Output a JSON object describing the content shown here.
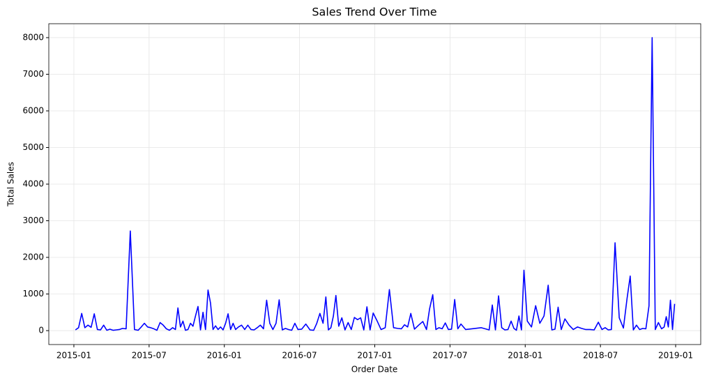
{
  "chart_data": {
    "type": "line",
    "title": "Sales Trend Over Time",
    "xlabel": "Order Date",
    "ylabel": "Total Sales",
    "color": "#0000ff",
    "grid": true,
    "x": [
      "2015-01",
      "2015-01",
      "2015-01",
      "2015-01",
      "2015-02",
      "2015-02",
      "2015-02",
      "2015-02",
      "2015-03",
      "2015-03",
      "2015-03",
      "2015-03",
      "2015-04",
      "2015-04",
      "2015-04",
      "2015-04",
      "2015-05",
      "2015-05",
      "2015-05",
      "2015-06",
      "2015-06",
      "2015-06",
      "2015-06",
      "2015-07",
      "2015-07",
      "2015-07",
      "2015-07",
      "2015-08",
      "2015-08",
      "2015-08",
      "2015-08",
      "2015-09",
      "2015-09",
      "2015-09",
      "2015-09",
      "2015-09",
      "2015-10",
      "2015-10",
      "2015-10",
      "2015-10",
      "2015-10",
      "2015-11",
      "2015-11",
      "2015-11",
      "2015-11",
      "2015-11",
      "2015-12",
      "2015-12",
      "2015-12",
      "2015-12",
      "2015-12",
      "2016-01",
      "2016-01",
      "2016-01",
      "2016-01",
      "2016-01",
      "2016-02",
      "2016-02",
      "2016-02",
      "2016-02",
      "2016-03",
      "2016-03",
      "2016-03",
      "2016-03",
      "2016-04",
      "2016-04",
      "2016-04",
      "2016-04",
      "2016-05",
      "2016-05",
      "2016-05",
      "2016-05",
      "2016-06",
      "2016-06",
      "2016-06",
      "2016-06",
      "2016-07",
      "2016-07",
      "2016-07",
      "2016-08",
      "2016-08",
      "2016-08",
      "2016-08",
      "2016-09",
      "2016-09",
      "2016-09",
      "2016-09",
      "2016-09",
      "2016-10",
      "2016-10",
      "2016-10",
      "2016-10",
      "2016-11",
      "2016-11",
      "2016-11",
      "2016-11",
      "2016-12",
      "2016-12",
      "2016-12",
      "2016-12",
      "2017-01",
      "2017-01",
      "2017-01",
      "2017-02",
      "2017-02",
      "2017-02",
      "2017-03",
      "2017-03",
      "2017-03",
      "2017-03",
      "2017-04",
      "2017-04",
      "2017-04",
      "2017-05",
      "2017-05",
      "2017-05",
      "2017-05",
      "2017-06",
      "2017-06",
      "2017-06",
      "2017-06",
      "2017-07",
      "2017-07",
      "2017-07",
      "2017-07",
      "2017-08",
      "2017-08",
      "2017-09",
      "2017-10",
      "2017-10",
      "2017-10",
      "2017-10",
      "2017-11",
      "2017-11",
      "2017-11",
      "2017-11",
      "2017-12",
      "2017-12",
      "2017-12",
      "2017-12",
      "2017-12",
      "2018-01",
      "2018-01",
      "2018-01",
      "2018-02",
      "2018-02",
      "2018-02",
      "2018-03",
      "2018-03",
      "2018-03",
      "2018-03",
      "2018-04",
      "2018-04",
      "2018-04",
      "2018-05",
      "2018-05",
      "2018-05",
      "2018-06",
      "2018-06",
      "2018-06",
      "2018-07",
      "2018-07",
      "2018-07",
      "2018-07",
      "2018-08",
      "2018-08",
      "2018-08",
      "2018-09",
      "2018-09",
      "2018-09",
      "2018-09",
      "2018-10",
      "2018-10",
      "2018-10",
      "2018-10",
      "2018-11",
      "2018-11",
      "2018-11",
      "2018-11",
      "2018-12",
      "2018-12",
      "2018-12",
      "2018-12",
      "2018-12",
      "2018-12"
    ],
    "values": [
      20,
      80,
      470,
      80,
      150,
      90,
      460,
      30,
      20,
      150,
      10,
      40,
      10,
      20,
      30,
      60,
      50,
      2720,
      30,
      10,
      100,
      200,
      100,
      80,
      50,
      10,
      220,
      150,
      50,
      10,
      80,
      30,
      620,
      100,
      260,
      10,
      30,
      200,
      120,
      400,
      660,
      20,
      500,
      30,
      1110,
      750,
      30,
      130,
      30,
      100,
      20,
      200,
      460,
      30,
      200,
      30,
      100,
      150,
      30,
      150,
      30,
      20,
      80,
      150,
      50,
      830,
      200,
      30,
      200,
      840,
      20,
      60,
      30,
      10,
      200,
      30,
      40,
      180,
      20,
      10,
      200,
      470,
      200,
      920,
      20,
      80,
      400,
      960,
      120,
      350,
      20,
      220,
      30,
      360,
      300,
      350,
      20,
      650,
      20,
      480,
      280,
      30,
      80,
      1120,
      80,
      60,
      50,
      160,
      100,
      470,
      40,
      150,
      250,
      30,
      600,
      980,
      30,
      80,
      50,
      210,
      30,
      40,
      850,
      50,
      180,
      30,
      50,
      80,
      20,
      700,
      20,
      950,
      80,
      20,
      30,
      260,
      60,
      10,
      400,
      20,
      1650,
      260,
      100,
      680,
      200,
      400,
      1240,
      20,
      40,
      640,
      30,
      320,
      150,
      30,
      100,
      60,
      30,
      30,
      20,
      230,
      30,
      80,
      20,
      30,
      2400,
      350,
      70,
      880,
      1490,
      20,
      150,
      30,
      60,
      50,
      680,
      8000,
      30,
      220,
      50,
      100,
      380,
      100,
      830,
      30,
      730
    ],
    "xlim": [
      "2014-11",
      "2019-03"
    ],
    "xticks": [
      "2015-01",
      "2015-07",
      "2016-01",
      "2016-07",
      "2017-01",
      "2017-07",
      "2018-01",
      "2018-07",
      "2019-01"
    ],
    "ylim": [
      -380,
      8380
    ],
    "yticks": [
      0,
      1000,
      2000,
      3000,
      4000,
      5000,
      6000,
      7000,
      8000
    ]
  }
}
